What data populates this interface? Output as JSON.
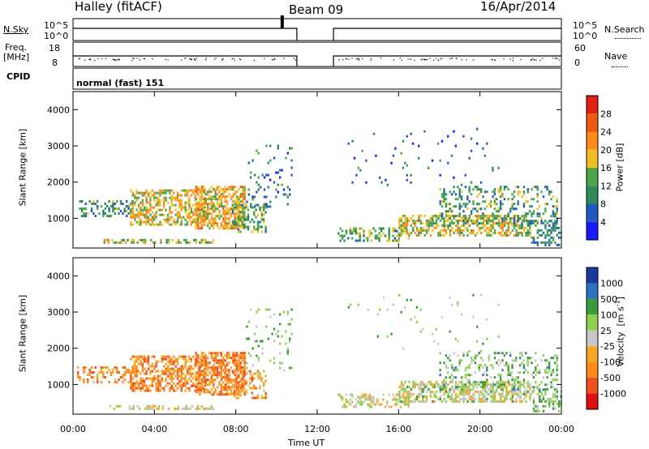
{
  "header": {
    "station": "Halley (fitACF)",
    "beam": "Beam 09",
    "date": "16/Apr/2014"
  },
  "panels": {
    "nsky": {
      "label": "N.Sky",
      "left_ticks": [
        "10^5",
        "10^0"
      ],
      "right_label": "N.Search",
      "right_ticks": [
        "10^5",
        "10^0"
      ]
    },
    "freq": {
      "label_line1": "Freq.",
      "label_line2": "[MHz]",
      "left_ticks": [
        "18",
        "8"
      ],
      "right_label": "Nave",
      "right_ticks": [
        "60",
        "0"
      ]
    },
    "cpid": {
      "label": "CPID",
      "value": "normal (fast) 151"
    }
  },
  "colors": {
    "power": [
      "#1a1aff",
      "#1f5bbf",
      "#2e8b57",
      "#4ca64c",
      "#f0c020",
      "#ff8c1a",
      "#f05a10",
      "#e02010"
    ],
    "velocity": [
      "#e01010",
      "#f05020",
      "#ff8c1a",
      "#f5a623",
      "#c8c8c8",
      "#8fd14f",
      "#3a9a3a",
      "#2e6fbf",
      "#1a3aa0"
    ]
  },
  "chart_data": [
    {
      "type": "heatmap",
      "ylabel": "Slant Range [km]",
      "xlabel": "Time UT",
      "x_ticks": [
        "00:00",
        "04:00",
        "08:00",
        "12:00",
        "16:00",
        "20:00",
        "00:00"
      ],
      "xlim_hours": [
        0,
        24
      ],
      "y_ticks": [
        1000,
        2000,
        3000,
        4000
      ],
      "ylim": [
        180,
        4500
      ],
      "colorbar": {
        "label": "Power [dB]",
        "ticks": [
          "4",
          "8",
          "12",
          "16",
          "20",
          "24",
          "28"
        ]
      },
      "data_gap_hours": [
        11.0,
        12.8
      ]
    },
    {
      "type": "heatmap",
      "ylabel": "Slant Range [km]",
      "xlabel": "Time UT",
      "x_ticks": [
        "00:00",
        "04:00",
        "08:00",
        "12:00",
        "16:00",
        "20:00",
        "00:00"
      ],
      "xlim_hours": [
        0,
        24
      ],
      "y_ticks": [
        1000,
        2000,
        3000,
        4000
      ],
      "ylim": [
        180,
        4500
      ],
      "colorbar": {
        "label": "Velocity",
        "unit": "[m s",
        "unit_exp": "-1",
        "unit_end": "]",
        "ticks": [
          "1000",
          "500",
          "100",
          "25",
          "-25",
          "-100",
          "-500",
          "-1000"
        ]
      },
      "data_gap_hours": [
        11.0,
        12.8
      ]
    }
  ],
  "regions": [
    {
      "t0": 0.2,
      "t1": 3.0,
      "r0": 1000,
      "r1": 1500,
      "d": 0.35,
      "pm": 2.2,
      "vm": 2.2
    },
    {
      "t0": 2.8,
      "t1": 6.5,
      "r0": 800,
      "r1": 1800,
      "d": 0.55,
      "pm": 4.0,
      "vm": 2.0
    },
    {
      "t0": 6.0,
      "t1": 8.5,
      "r0": 700,
      "r1": 1900,
      "d": 0.65,
      "pm": 4.3,
      "vm": 2.0
    },
    {
      "t0": 7.8,
      "t1": 9.5,
      "r0": 600,
      "r1": 1400,
      "d": 0.45,
      "pm": 2.8,
      "vm": 2.4
    },
    {
      "t0": 1.5,
      "t1": 7.0,
      "r0": 280,
      "r1": 430,
      "d": 0.5,
      "pm": 3.5,
      "vm": 4.0
    },
    {
      "t0": 8.5,
      "t1": 10.8,
      "r0": 1300,
      "r1": 3100,
      "d": 0.12,
      "pm": 1.5,
      "vm": 5.0
    },
    {
      "t0": 13.0,
      "t1": 16.5,
      "r0": 350,
      "r1": 750,
      "d": 0.4,
      "pm": 2.8,
      "vm": 4.0
    },
    {
      "t0": 16.0,
      "t1": 22.5,
      "r0": 500,
      "r1": 1100,
      "d": 0.55,
      "pm": 3.8,
      "vm": 4.2
    },
    {
      "t0": 18.0,
      "t1": 23.8,
      "r0": 800,
      "r1": 1900,
      "d": 0.28,
      "pm": 2.5,
      "vm": 5.2
    },
    {
      "t0": 13.5,
      "t1": 21.0,
      "r0": 1900,
      "r1": 3500,
      "d": 0.03,
      "pm": 1.2,
      "vm": 5.0
    },
    {
      "t0": 22.5,
      "t1": 24.0,
      "r0": 200,
      "r1": 900,
      "d": 0.4,
      "pm": 2.0,
      "vm": 5.0
    }
  ]
}
